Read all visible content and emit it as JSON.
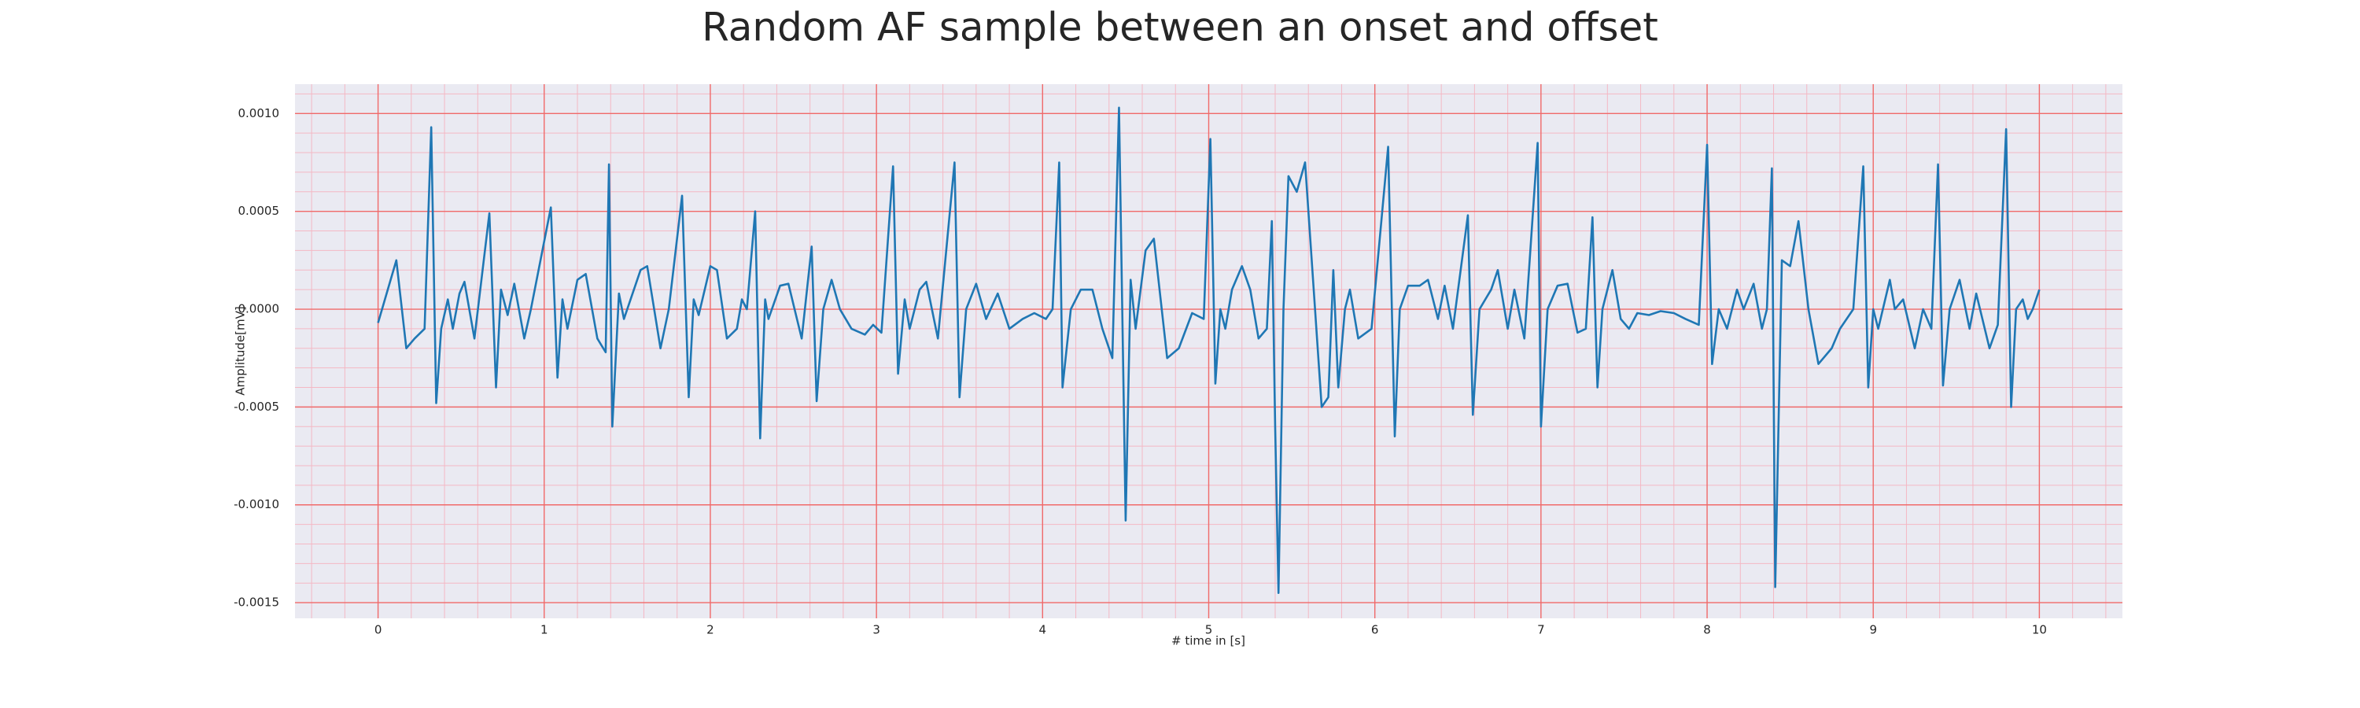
{
  "chart_data": {
    "type": "line",
    "title": "Random AF sample between an onset and offset",
    "xlabel": "# time in [s]",
    "ylabel": "Amplitude[mV]",
    "color": "#1f77b4",
    "grid": true,
    "minor_grid": true,
    "xlim": [
      -0.5,
      10.5
    ],
    "ylim": [
      -0.00158,
      0.00115
    ],
    "xticks": [
      0,
      1,
      2,
      3,
      4,
      5,
      6,
      7,
      8,
      9,
      10
    ],
    "yticks": [
      {
        "value": -0.0015,
        "label": "-0.0015"
      },
      {
        "value": -0.001,
        "label": "-0.0010"
      },
      {
        "value": -0.0005,
        "label": "-0.0005"
      },
      {
        "value": 0,
        "label": "0.0000"
      },
      {
        "value": 0.0005,
        "label": "0.0005"
      },
      {
        "value": 0.001,
        "label": "0.0010"
      }
    ],
    "x": [
      0,
      0.11,
      0.17,
      0.22,
      0.28,
      0.32,
      0.35,
      0.38,
      0.42,
      0.45,
      0.49,
      0.52,
      0.58,
      0.67,
      0.71,
      0.74,
      0.78,
      0.82,
      0.88,
      0.92,
      1.04,
      1.08,
      1.11,
      1.14,
      1.2,
      1.25,
      1.32,
      1.37,
      1.39,
      1.41,
      1.45,
      1.48,
      1.58,
      1.62,
      1.7,
      1.75,
      1.83,
      1.87,
      1.9,
      1.93,
      2.0,
      2.04,
      2.1,
      2.16,
      2.19,
      2.22,
      2.27,
      2.3,
      2.33,
      2.35,
      2.42,
      2.47,
      2.55,
      2.61,
      2.64,
      2.68,
      2.73,
      2.78,
      2.85,
      2.93,
      2.98,
      3.03,
      3.1,
      3.13,
      3.17,
      3.2,
      3.26,
      3.3,
      3.37,
      3.47,
      3.5,
      3.54,
      3.6,
      3.66,
      3.73,
      3.8,
      3.88,
      3.95,
      4.02,
      4.06,
      4.1,
      4.12,
      4.17,
      4.23,
      4.3,
      4.36,
      4.42,
      4.46,
      4.5,
      4.53,
      4.56,
      4.62,
      4.67,
      4.75,
      4.82,
      4.9,
      4.97,
      5.01,
      5.04,
      5.07,
      5.1,
      5.14,
      5.2,
      5.25,
      5.3,
      5.35,
      5.38,
      5.4,
      5.42,
      5.45,
      5.48,
      5.53,
      5.58,
      5.64,
      5.68,
      5.72,
      5.75,
      5.78,
      5.82,
      5.85,
      5.9,
      5.98,
      6.08,
      6.12,
      6.15,
      6.2,
      6.27,
      6.32,
      6.38,
      6.42,
      6.47,
      6.56,
      6.59,
      6.63,
      6.7,
      6.74,
      6.8,
      6.84,
      6.9,
      6.98,
      7.0,
      7.04,
      7.1,
      7.16,
      7.22,
      7.27,
      7.31,
      7.34,
      7.37,
      7.43,
      7.48,
      7.53,
      7.58,
      7.65,
      7.72,
      7.8,
      7.87,
      7.95,
      8.0,
      8.03,
      8.07,
      8.12,
      8.18,
      8.22,
      8.28,
      8.33,
      8.36,
      8.39,
      8.41,
      8.45,
      8.5,
      8.55,
      8.61,
      8.67,
      8.75,
      8.8,
      8.88,
      8.94,
      8.97,
      9.0,
      9.03,
      9.1,
      9.13,
      9.18,
      9.25,
      9.3,
      9.35,
      9.39,
      9.42,
      9.46,
      9.52,
      9.58,
      9.62,
      9.7,
      9.75,
      9.8,
      9.83,
      9.86,
      9.9,
      9.93,
      9.96,
      10.0
    ],
    "values": [
      -7e-05,
      0.00025,
      -0.0002,
      -0.00015,
      -0.0001,
      0.00093,
      -0.00048,
      -0.0001,
      5e-05,
      -0.0001,
      8e-05,
      0.00014,
      -0.00015,
      0.00049,
      -0.0004,
      0.0001,
      -3e-05,
      0.00013,
      -0.00015,
      0,
      0.00052,
      -0.00035,
      5e-05,
      -0.0001,
      0.00015,
      0.00018,
      -0.00015,
      -0.00022,
      0.00074,
      -0.0006,
      8e-05,
      -5e-05,
      0.0002,
      0.00022,
      -0.0002,
      0,
      0.00058,
      -0.00045,
      5e-05,
      -3e-05,
      0.00022,
      0.0002,
      -0.00015,
      -0.0001,
      5e-05,
      0,
      0.0005,
      -0.00066,
      5e-05,
      -5e-05,
      0.00012,
      0.00013,
      -0.00015,
      0.00032,
      -0.00047,
      0,
      0.00015,
      0,
      -0.0001,
      -0.00013,
      -8e-05,
      -0.00012,
      0.00073,
      -0.00033,
      5e-05,
      -0.0001,
      0.0001,
      0.00014,
      -0.00015,
      0.00075,
      -0.00045,
      0,
      0.00013,
      -5e-05,
      8e-05,
      -0.0001,
      -5e-05,
      -2e-05,
      -5e-05,
      0,
      0.00075,
      -0.0004,
      0,
      0.0001,
      0.0001,
      -0.0001,
      -0.00025,
      0.00103,
      -0.00108,
      0.00015,
      -0.0001,
      0.0003,
      0.00036,
      -0.00025,
      -0.0002,
      -2e-05,
      -5e-05,
      0.00087,
      -0.00038,
      0,
      -0.0001,
      0.0001,
      0.00022,
      0.0001,
      -0.00015,
      -0.0001,
      0.00045,
      -0.0006,
      -0.00145,
      0,
      0.00068,
      0.0006,
      0.00075,
      0,
      -0.0005,
      -0.00045,
      0.0002,
      -0.0004,
      0,
      0.0001,
      -0.00015,
      -0.0001,
      0.00083,
      -0.00065,
      0,
      0.00012,
      0.00012,
      0.00015,
      -5e-05,
      0.00012,
      -0.0001,
      0.00048,
      -0.00054,
      0,
      0.0001,
      0.0002,
      -0.0001,
      0.0001,
      -0.00015,
      0.00085,
      -0.0006,
      0,
      0.00012,
      0.00013,
      -0.00012,
      -0.0001,
      0.00047,
      -0.0004,
      0,
      0.0002,
      -5e-05,
      -0.0001,
      -2e-05,
      -3e-05,
      -1e-05,
      -2e-05,
      -5e-05,
      -8e-05,
      0.00084,
      -0.00028,
      0,
      -0.0001,
      0.0001,
      0,
      0.00013,
      -0.0001,
      0,
      0.00072,
      -0.00142,
      0.00025,
      0.00022,
      0.00045,
      0,
      -0.00028,
      -0.0002,
      -0.0001,
      0,
      0.00073,
      -0.0004,
      0,
      -0.0001,
      0.00015,
      0,
      5e-05,
      -0.0002,
      0,
      -0.0001,
      0.00074,
      -0.00039,
      0,
      0.00015,
      -0.0001,
      8e-05,
      -0.0002,
      -8e-05,
      0.00092,
      -0.0005,
      0,
      5e-05,
      -5e-05,
      0,
      0.0001
    ]
  }
}
